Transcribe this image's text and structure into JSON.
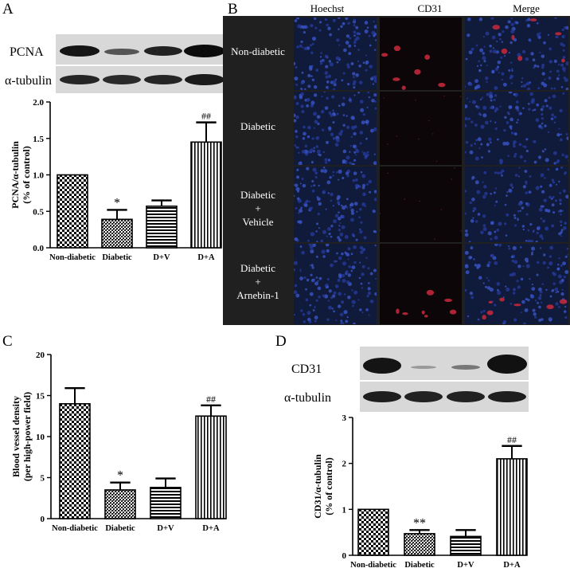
{
  "panels": [
    "A",
    "B",
    "C",
    "D"
  ],
  "panel_a": {
    "blot_rows": [
      "PCNA",
      "α-tubulin"
    ],
    "chart": {
      "type": "bar",
      "ylabel": "PCNA/α-tubulin\n(% of control)",
      "categories": [
        "Non-diabetic",
        "Diabetic",
        "D+V",
        "D+A"
      ],
      "values": [
        1.0,
        0.39,
        0.57,
        1.45
      ],
      "errors": [
        0.0,
        0.13,
        0.08,
        0.27
      ],
      "annotations": [
        "",
        "*",
        "",
        "##"
      ],
      "yticks": [
        "0.0",
        "0.5",
        "1.0",
        "1.5",
        "2.0"
      ],
      "ylim": [
        0,
        2.0
      ]
    }
  },
  "panel_b": {
    "columns": [
      "Hoechst",
      "CD31",
      "Merge"
    ],
    "rows": [
      [
        "Non-diabetic"
      ],
      [
        "Diabetic"
      ],
      [
        "Diabetic",
        "+",
        "Vehicle"
      ],
      [
        "Diabetic",
        "+",
        "Arnebin-1"
      ]
    ]
  },
  "panel_c": {
    "chart": {
      "type": "bar",
      "ylabel": "Blood vessel density\n(per high-power field)",
      "categories": [
        "Non-diabetic",
        "Diabetic",
        "D+V",
        "D+A"
      ],
      "values": [
        14.0,
        3.5,
        3.8,
        12.5
      ],
      "errors": [
        1.9,
        0.9,
        1.1,
        1.3
      ],
      "annotations": [
        "",
        "*",
        "",
        "##"
      ],
      "yticks": [
        "0",
        "5",
        "10",
        "15",
        "20"
      ],
      "ylim": [
        0,
        20
      ]
    }
  },
  "panel_d": {
    "blot_rows": [
      "CD31",
      "α-tubulin"
    ],
    "chart": {
      "type": "bar",
      "ylabel": "CD31/α-tubulin\n(% of control)",
      "categories": [
        "Non-diabetic",
        "Diabetic",
        "D+V",
        "D+A"
      ],
      "values": [
        1.0,
        0.47,
        0.41,
        2.1
      ],
      "errors": [
        0.0,
        0.08,
        0.14,
        0.28
      ],
      "annotations": [
        "",
        "**",
        "",
        "##"
      ],
      "yticks": [
        "0",
        "1",
        "2",
        "3"
      ],
      "ylim": [
        0,
        3
      ]
    }
  },
  "chart_data": [
    {
      "type": "bar",
      "ylabel": "PCNA/α-tubulin (% of control)",
      "categories": [
        "Non-diabetic",
        "Diabetic",
        "D+V",
        "D+A"
      ],
      "values": [
        1.0,
        0.39,
        0.57,
        1.45
      ],
      "ylim": [
        0,
        2.0
      ]
    },
    {
      "type": "bar",
      "ylabel": "Blood vessel density (per high-power field)",
      "categories": [
        "Non-diabetic",
        "Diabetic",
        "D+V",
        "D+A"
      ],
      "values": [
        14.0,
        3.5,
        3.8,
        12.5
      ],
      "ylim": [
        0,
        20
      ]
    },
    {
      "type": "bar",
      "ylabel": "CD31/α-tubulin (% of control)",
      "categories": [
        "Non-diabetic",
        "Diabetic",
        "D+V",
        "D+A"
      ],
      "values": [
        1.0,
        0.47,
        0.41,
        2.1
      ],
      "ylim": [
        0,
        3
      ]
    }
  ]
}
